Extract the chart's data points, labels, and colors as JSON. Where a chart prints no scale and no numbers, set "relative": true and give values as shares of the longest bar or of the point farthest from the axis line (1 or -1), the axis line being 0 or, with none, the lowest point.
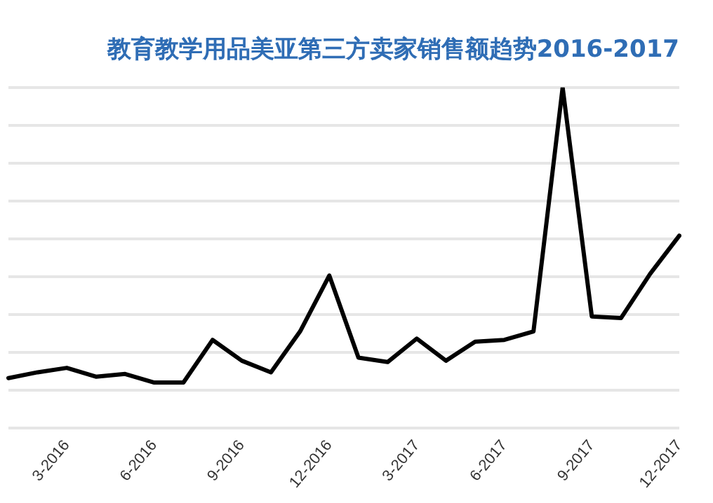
{
  "chart_data": {
    "type": "line",
    "title": "教育教学用品美亚第三方卖家销售额趋势2016-2017",
    "categories": [
      null,
      null,
      "3-2016",
      null,
      null,
      "6-2016",
      null,
      null,
      "9-2016",
      null,
      null,
      "12-2016",
      null,
      null,
      "3-2017",
      null,
      null,
      "6-2017",
      null,
      null,
      "9-2017",
      null,
      null,
      "12-2017"
    ],
    "series": [
      {
        "color": "#000000",
        "values": [
          0.147,
          0.164,
          0.177,
          0.151,
          0.159,
          0.134,
          0.134,
          0.259,
          0.198,
          0.164,
          0.284,
          0.448,
          0.207,
          0.194,
          0.263,
          0.198,
          0.254,
          0.259,
          0.284,
          1,
          0.328,
          0.323,
          0.453,
          0.565
        ]
      }
    ],
    "relative": true,
    "grid": "y",
    "legend": false,
    "marker": "none",
    "line_style": "solid"
  }
}
